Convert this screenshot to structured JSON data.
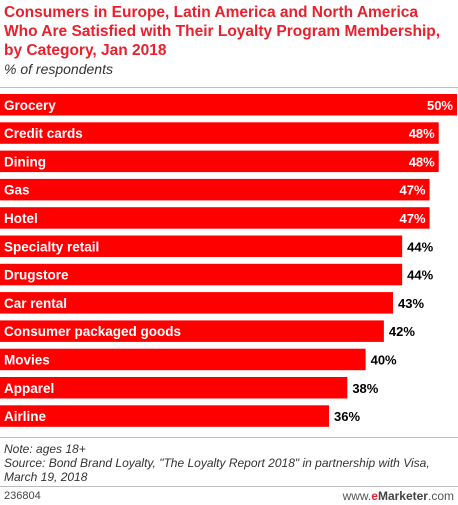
{
  "header": {
    "title": "Consumers in Europe, Latin America and North America Who Are Satisfied with Their Loyalty Program Membership, by Category, Jan 2018",
    "subtitle": "% of respondents"
  },
  "chart_data": {
    "type": "bar",
    "orientation": "horizontal",
    "title": "Consumers in Europe, Latin America and North America Who Are Satisfied with Their Loyalty Program Membership, by Category, Jan 2018",
    "subtitle": "% of respondents",
    "categories": [
      "Grocery",
      "Credit cards",
      "Dining",
      "Gas",
      "Hotel",
      "Specialty retail",
      "Drugstore",
      "Car rental",
      "Consumer packaged goods",
      "Movies",
      "Apparel",
      "Airline"
    ],
    "values": [
      50,
      48,
      48,
      47,
      47,
      44,
      44,
      43,
      42,
      40,
      38,
      36
    ],
    "value_labels": [
      "50%",
      "48%",
      "48%",
      "47%",
      "47%",
      "44%",
      "44%",
      "43%",
      "42%",
      "40%",
      "38%",
      "36%"
    ],
    "xlim": [
      0,
      50
    ],
    "grid": false,
    "legend": "none",
    "bar_color": "#ff0000",
    "label_color": "#ffffff",
    "value_color": "#000000"
  },
  "footer": {
    "note": "Note: ages 18+",
    "source": "Source: Bond Brand Loyalty, \"The Loyalty Report 2018\" in partnership with Visa, March 19, 2018",
    "chart_id": "236804",
    "brand_prefix": "www.",
    "brand_highlight": "e",
    "brand_name": "Marketer",
    "brand_suffix": ".com"
  }
}
